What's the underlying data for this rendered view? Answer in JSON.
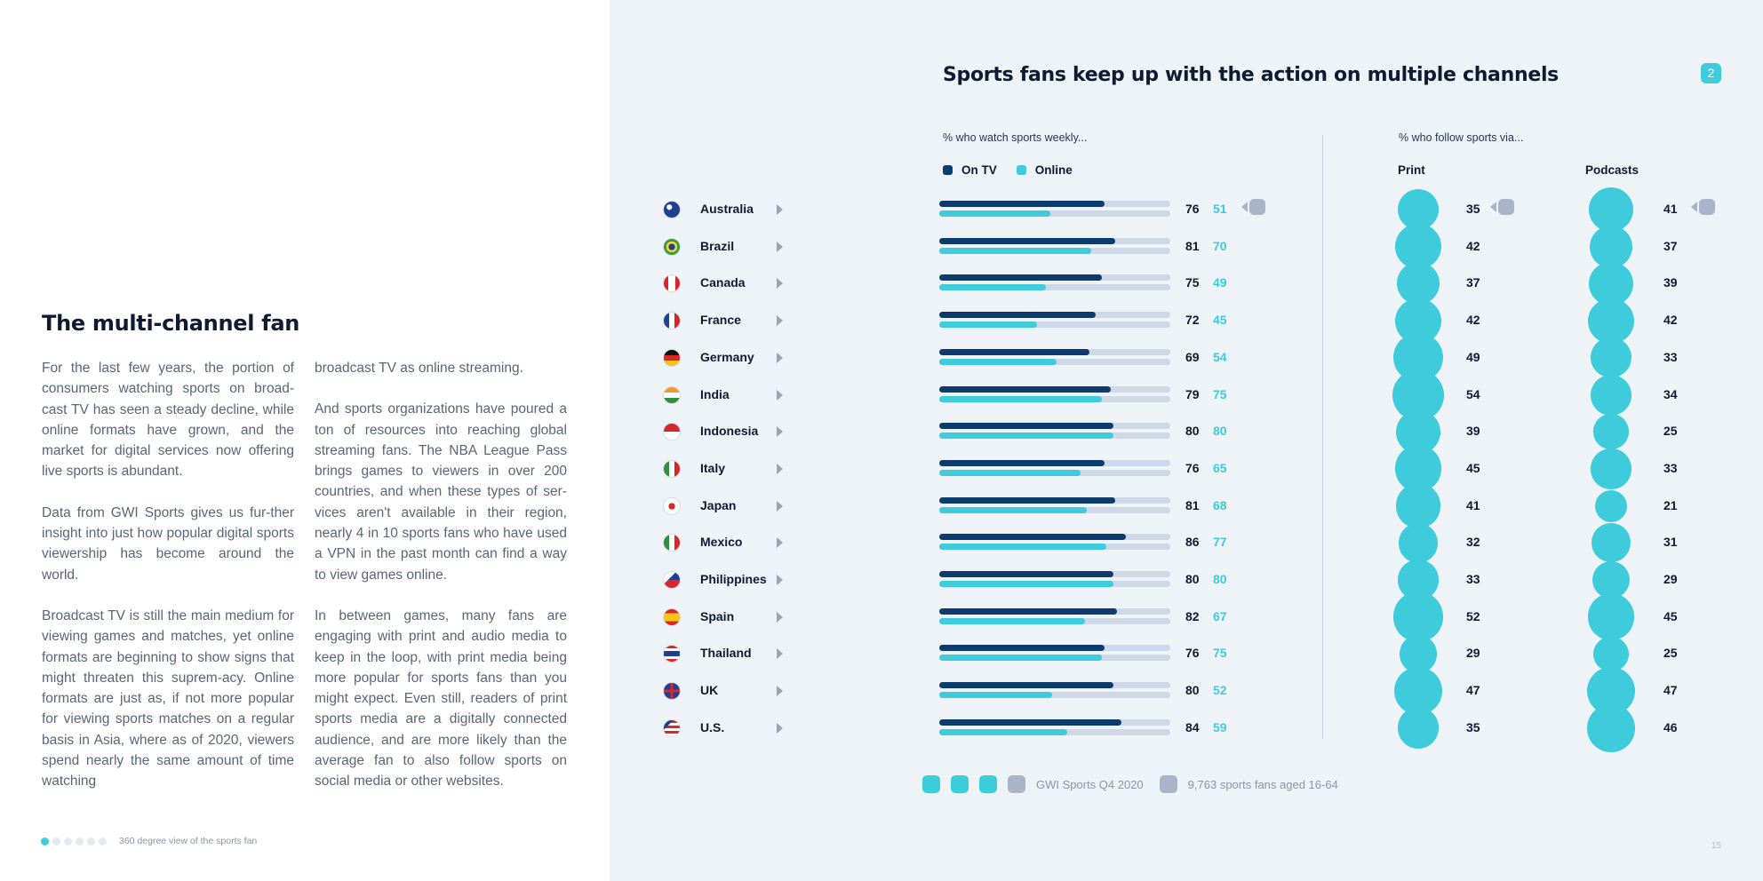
{
  "left": {
    "title": "The multi-channel fan",
    "col1": [
      "For the last few years, the portion of consumers watching sports on broad-cast TV has seen a steady decline, while online formats have grown, and the market for digital services now offering live sports is abundant.",
      "Data from GWI Sports gives us fur-ther insight into just how popular digital sports viewership has become around the world.",
      "Broadcast TV is still the main medium for viewing games and matches, yet online formats are beginning to show signs that might threaten this suprem-acy. Online formats are just as, if not more popular for viewing sports matches on a regular basis in Asia, where as of 2020, viewers spend nearly the same amount of time watching"
    ],
    "col2": [
      "broadcast TV as online streaming.",
      "And sports organizations have poured a ton of resources into reaching global streaming fans. The NBA League Pass brings games to viewers in over 200 countries, and when these types of ser-vices aren't available in their region, nearly 4 in 10 sports fans who have used a VPN in the past month can find a way to view games online.",
      "In between games, many fans are engaging with print and audio media to keep in the loop, with print media being more popular for sports fans than you might expect. Even still, readers of print sports media are a digitally connected audience, and are more likely than the average fan to also follow sports on social media or other websites."
    ],
    "footer_label": "360 degree view of the sports fan",
    "pager_dots": 6,
    "pager_active": 0
  },
  "right": {
    "title": "Sports fans keep up with the action on multiple channels",
    "page_badge": "2",
    "watch_subhead": "% who watch sports weekly...",
    "follow_subhead": "% who follow sports via...",
    "legend_tv": "On TV",
    "legend_online": "Online",
    "print_label": "Print",
    "podcasts_label": "Podcasts",
    "source": "GWI Sports Q4 2020",
    "base": "9,763 sports fans aged 16-64",
    "page_number": "15"
  },
  "colors": {
    "tv": "#0e3b6e",
    "online": "#3ecbdb",
    "track": "#cfd8e8",
    "background_right": "#eef3f8"
  },
  "chart_data": {
    "type": "bar",
    "categories": [
      "Australia",
      "Brazil",
      "Canada",
      "France",
      "Germany",
      "India",
      "Indonesia",
      "Italy",
      "Japan",
      "Mexico",
      "Philippines",
      "Spain",
      "Thailand",
      "UK",
      "U.S."
    ],
    "series": [
      {
        "name": "On TV",
        "values": [
          76,
          81,
          75,
          72,
          69,
          79,
          80,
          76,
          81,
          86,
          80,
          82,
          76,
          80,
          84
        ]
      },
      {
        "name": "Online",
        "values": [
          51,
          70,
          49,
          45,
          54,
          75,
          80,
          65,
          68,
          77,
          80,
          67,
          75,
          52,
          59
        ]
      },
      {
        "name": "Print",
        "values": [
          35,
          42,
          37,
          42,
          49,
          54,
          39,
          45,
          41,
          32,
          33,
          52,
          29,
          47,
          35
        ]
      },
      {
        "name": "Podcasts",
        "values": [
          41,
          37,
          39,
          42,
          33,
          34,
          25,
          33,
          21,
          31,
          29,
          45,
          25,
          47,
          46
        ]
      }
    ],
    "flags": [
      "au",
      "br",
      "ca",
      "fr",
      "de",
      "in",
      "id",
      "it",
      "jp",
      "mx",
      "ph",
      "es",
      "th",
      "uk",
      "us"
    ],
    "title": "Sports fans keep up with the action on multiple channels",
    "ylim": [
      0,
      100
    ]
  }
}
